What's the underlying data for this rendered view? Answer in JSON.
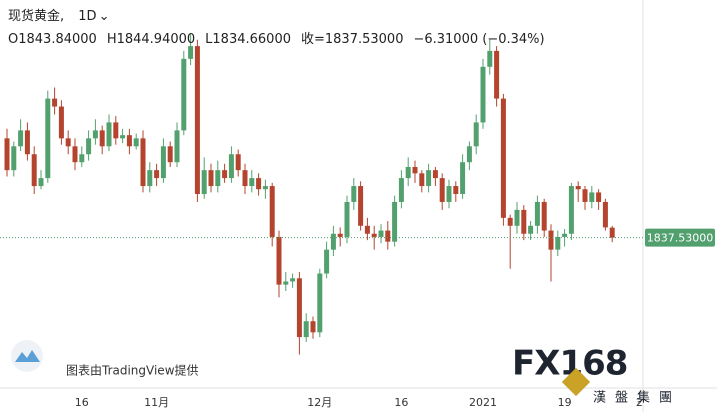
{
  "header": {
    "symbol": "现货黄金",
    "interval": "1D",
    "open": "O1843.84000",
    "high": "H1844.94000",
    "low": "L1834.66000",
    "close": "收=1837.53000",
    "change": "−6.31000 (−0.34%)"
  },
  "attribution": "图表由TradingView提供",
  "watermark": {
    "brand": "FX168",
    "name": "漢盤集團"
  },
  "chart_data": {
    "type": "candlestick",
    "categories": [
      null,
      null,
      null,
      null,
      null,
      null,
      null,
      null,
      null,
      null,
      null,
      "16",
      null,
      null,
      null,
      null,
      null,
      null,
      null,
      null,
      null,
      null,
      "11月",
      null,
      null,
      null,
      null,
      null,
      null,
      null,
      null,
      null,
      null,
      null,
      null,
      null,
      null,
      null,
      null,
      null,
      null,
      null,
      null,
      null,
      null,
      null,
      "12月",
      null,
      null,
      null,
      null,
      null,
      null,
      null,
      null,
      null,
      null,
      null,
      "16",
      null,
      null,
      null,
      null,
      null,
      null,
      null,
      null,
      null,
      null,
      null,
      "2021",
      null,
      null,
      null,
      null,
      null,
      null,
      null,
      null,
      null,
      null,
      null,
      "19",
      null,
      null,
      null,
      null,
      null,
      null,
      null,
      null,
      null,
      null,
      "2"
    ],
    "open": [
      1900,
      1880,
      1895,
      1905,
      1890,
      1870,
      1875,
      1925,
      1920,
      1900,
      1895,
      1885,
      1890,
      1900,
      1905,
      1895,
      1910,
      1900,
      1902,
      1895,
      1900,
      1870,
      1880,
      1875,
      1895,
      1885,
      1905,
      1950,
      1958,
      1865,
      1880,
      1870,
      1880,
      1875,
      1890,
      1880,
      1870,
      1875,
      1868,
      1870,
      1838,
      1808,
      1810,
      1812,
      1775,
      1785,
      1778,
      1815,
      1830,
      1840,
      1838,
      1860,
      1870,
      1845,
      1840,
      1838,
      1842,
      1835,
      1860,
      1875,
      1882,
      1878,
      1870,
      1880,
      1875,
      1860,
      1870,
      1865,
      1885,
      1895,
      1910,
      1945,
      1955,
      1925,
      1850,
      1845,
      1855,
      1840,
      1845,
      1860,
      1842,
      1830,
      1838,
      1840,
      1870,
      1868,
      1860,
      1866,
      1860,
      1843.84,
      null,
      null,
      null,
      null
    ],
    "high": [
      1906,
      1898,
      1912,
      1910,
      1895,
      1880,
      1930,
      1932,
      1924,
      1905,
      1900,
      1895,
      1905,
      1912,
      1908,
      1915,
      1914,
      1906,
      1906,
      1903,
      1905,
      1885,
      1884,
      1900,
      1898,
      1910,
      1955,
      1966,
      1962,
      1888,
      1884,
      1886,
      1884,
      1895,
      1893,
      1884,
      1880,
      1878,
      1874,
      1872,
      1842,
      1816,
      1815,
      1816,
      1790,
      1788,
      1818,
      1835,
      1845,
      1844,
      1864,
      1875,
      1873,
      1850,
      1845,
      1846,
      1848,
      1864,
      1880,
      1888,
      1886,
      1880,
      1884,
      1882,
      1878,
      1874,
      1873,
      1890,
      1898,
      1915,
      1950,
      1962,
      1958,
      1928,
      1852,
      1860,
      1858,
      1848,
      1864,
      1862,
      1846,
      1842,
      1843,
      1872,
      1873,
      1870,
      1870,
      1868,
      1862,
      1844.94,
      null,
      null,
      null,
      null
    ],
    "low": [
      1876,
      1876,
      1892,
      1886,
      1865,
      1868,
      1872,
      1915,
      1896,
      1890,
      1880,
      1882,
      1886,
      1896,
      1890,
      1892,
      1896,
      1897,
      1890,
      1893,
      1866,
      1866,
      1870,
      1872,
      1882,
      1882,
      1902,
      1946,
      1860,
      1862,
      1866,
      1866,
      1872,
      1872,
      1876,
      1865,
      1866,
      1864,
      1862,
      1832,
      1800,
      1804,
      1806,
      1764,
      1772,
      1774,
      1775,
      1812,
      1826,
      1832,
      1834,
      1855,
      1842,
      1836,
      1830,
      1834,
      1830,
      1832,
      1856,
      1870,
      1872,
      1866,
      1866,
      1870,
      1855,
      1856,
      1860,
      1862,
      1880,
      1890,
      1906,
      1940,
      1920,
      1845,
      1818,
      1840,
      1836,
      1836,
      1840,
      1838,
      1810,
      1826,
      1832,
      1836,
      1860,
      1855,
      1856,
      1855,
      1842,
      1834.66,
      null,
      null,
      null,
      null
    ],
    "close": [
      1880,
      1895,
      1905,
      1890,
      1870,
      1875,
      1925,
      1920,
      1900,
      1895,
      1885,
      1890,
      1900,
      1905,
      1895,
      1910,
      1900,
      1902,
      1895,
      1900,
      1870,
      1880,
      1875,
      1895,
      1885,
      1905,
      1950,
      1958,
      1865,
      1880,
      1870,
      1880,
      1875,
      1890,
      1880,
      1870,
      1875,
      1868,
      1870,
      1838,
      1808,
      1810,
      1812,
      1775,
      1785,
      1778,
      1815,
      1830,
      1840,
      1838,
      1860,
      1870,
      1845,
      1840,
      1838,
      1842,
      1835,
      1860,
      1875,
      1882,
      1878,
      1870,
      1880,
      1875,
      1860,
      1870,
      1865,
      1885,
      1895,
      1910,
      1945,
      1955,
      1925,
      1850,
      1845,
      1855,
      1840,
      1845,
      1860,
      1842,
      1830,
      1838,
      1840,
      1870,
      1868,
      1860,
      1866,
      1860,
      1844,
      1837.53,
      null,
      null,
      null,
      null
    ],
    "up_color": "#53a06f",
    "down_color": "#b5442f",
    "ylim": [
      1743,
      1987
    ],
    "last_price": {
      "value": 1837.53,
      "label": "1837.53000"
    }
  }
}
